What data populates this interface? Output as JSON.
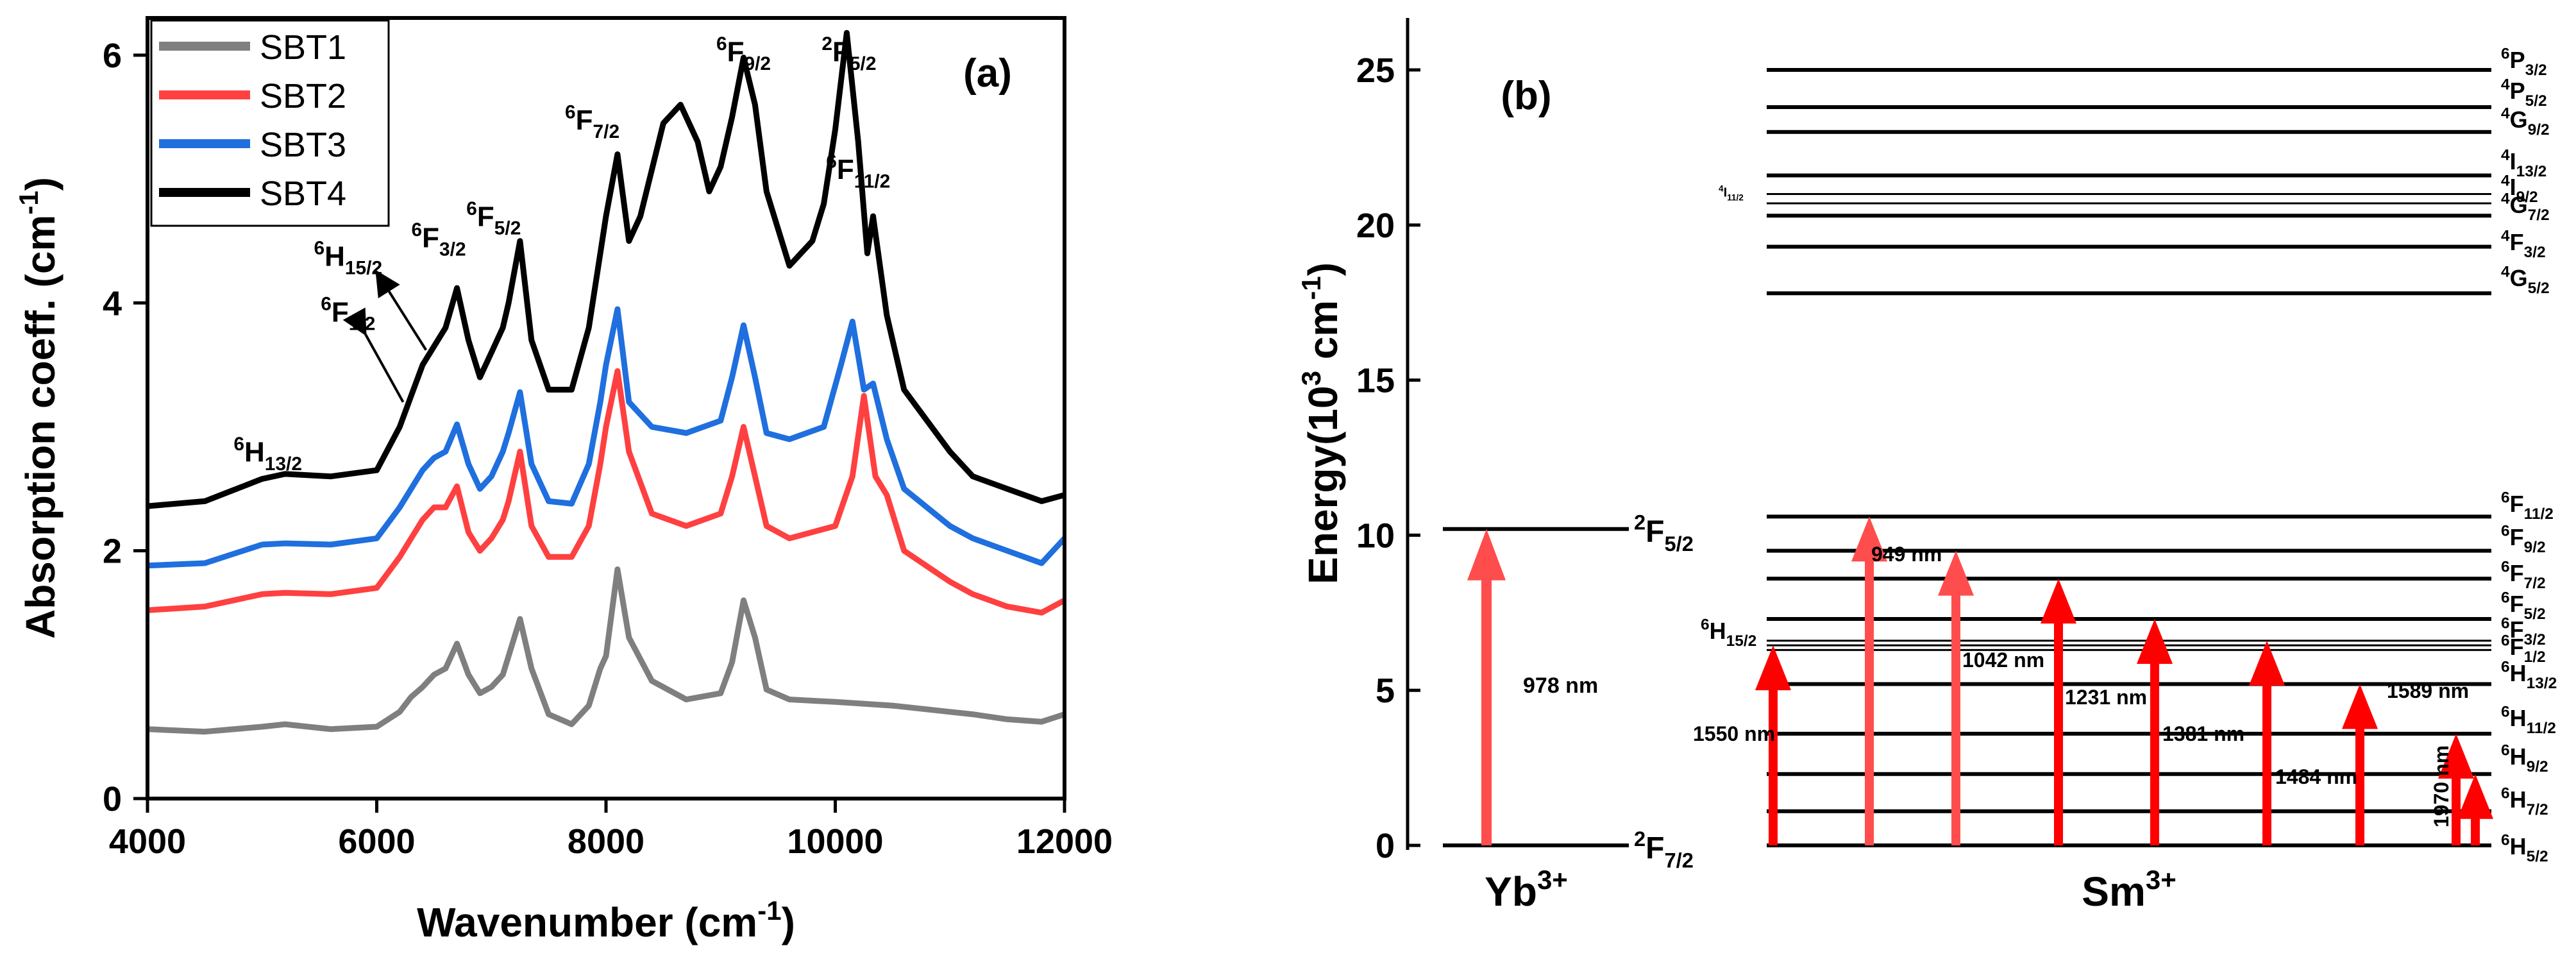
{
  "colors": {
    "SBT1": "#7f7f7f",
    "SBT2": "#ff4040",
    "SBT3": "#1f6fde",
    "SBT4": "#000000",
    "arrow_red": "#ff0000",
    "arrow_pink": "#ff4d4d"
  },
  "chart_data": [
    {
      "type": "line",
      "panel_label": "(a)",
      "xlabel": "Wavenumber (cm",
      "xlabel_sup": "-1",
      "xlabel_end": ")",
      "ylabel": "Absorption coeff. (cm",
      "ylabel_sup": "-1",
      "ylabel_end": ")",
      "xlim": [
        4000,
        12000
      ],
      "ylim": [
        0,
        6.3
      ],
      "xticks": [
        4000,
        6000,
        8000,
        10000,
        12000
      ],
      "yticks": [
        0,
        2,
        4,
        6
      ],
      "xtick_labels": [
        "4000",
        "6000",
        "8000",
        "10000",
        "12000"
      ],
      "ytick_labels": [
        "0",
        "2",
        "4",
        "6"
      ],
      "legend": [
        "SBT1",
        "SBT2",
        "SBT3",
        "SBT4"
      ],
      "series": [
        {
          "name": "SBT1",
          "points": [
            [
              4000,
              0.56
            ],
            [
              4500,
              0.54
            ],
            [
              5000,
              0.58
            ],
            [
              5200,
              0.6
            ],
            [
              5600,
              0.56
            ],
            [
              6000,
              0.58
            ],
            [
              6200,
              0.7
            ],
            [
              6300,
              0.82
            ],
            [
              6400,
              0.9
            ],
            [
              6500,
              1.0
            ],
            [
              6600,
              1.05
            ],
            [
              6700,
              1.25
            ],
            [
              6800,
              1.0
            ],
            [
              6900,
              0.85
            ],
            [
              7000,
              0.9
            ],
            [
              7100,
              1.0
            ],
            [
              7150,
              1.15
            ],
            [
              7250,
              1.45
            ],
            [
              7350,
              1.05
            ],
            [
              7500,
              0.68
            ],
            [
              7700,
              0.6
            ],
            [
              7850,
              0.75
            ],
            [
              7950,
              1.05
            ],
            [
              8000,
              1.15
            ],
            [
              8100,
              1.85
            ],
            [
              8200,
              1.3
            ],
            [
              8400,
              0.95
            ],
            [
              8700,
              0.8
            ],
            [
              9000,
              0.85
            ],
            [
              9100,
              1.1
            ],
            [
              9200,
              1.6
            ],
            [
              9300,
              1.3
            ],
            [
              9400,
              0.88
            ],
            [
              9600,
              0.8
            ],
            [
              10000,
              0.78
            ],
            [
              10500,
              0.75
            ],
            [
              11000,
              0.7
            ],
            [
              11200,
              0.68
            ],
            [
              11500,
              0.64
            ],
            [
              11800,
              0.62
            ],
            [
              12000,
              0.68
            ]
          ]
        },
        {
          "name": "SBT2",
          "points": [
            [
              4000,
              1.52
            ],
            [
              4500,
              1.55
            ],
            [
              5000,
              1.65
            ],
            [
              5200,
              1.66
            ],
            [
              5600,
              1.65
            ],
            [
              6000,
              1.7
            ],
            [
              6200,
              1.95
            ],
            [
              6300,
              2.1
            ],
            [
              6400,
              2.25
            ],
            [
              6500,
              2.35
            ],
            [
              6600,
              2.35
            ],
            [
              6700,
              2.52
            ],
            [
              6800,
              2.15
            ],
            [
              6900,
              2.0
            ],
            [
              7000,
              2.1
            ],
            [
              7100,
              2.25
            ],
            [
              7150,
              2.4
            ],
            [
              7250,
              2.8
            ],
            [
              7350,
              2.2
            ],
            [
              7500,
              1.95
            ],
            [
              7700,
              1.95
            ],
            [
              7850,
              2.2
            ],
            [
              7950,
              2.7
            ],
            [
              8000,
              3.0
            ],
            [
              8100,
              3.45
            ],
            [
              8200,
              2.8
            ],
            [
              8400,
              2.3
            ],
            [
              8700,
              2.2
            ],
            [
              9000,
              2.3
            ],
            [
              9100,
              2.6
            ],
            [
              9200,
              3.0
            ],
            [
              9300,
              2.6
            ],
            [
              9400,
              2.2
            ],
            [
              9600,
              2.1
            ],
            [
              10000,
              2.2
            ],
            [
              10150,
              2.6
            ],
            [
              10250,
              3.25
            ],
            [
              10350,
              2.6
            ],
            [
              10450,
              2.45
            ],
            [
              10600,
              2.0
            ],
            [
              11000,
              1.75
            ],
            [
              11200,
              1.65
            ],
            [
              11500,
              1.55
            ],
            [
              11800,
              1.5
            ],
            [
              12000,
              1.6
            ]
          ]
        },
        {
          "name": "SBT3",
          "points": [
            [
              4000,
              1.88
            ],
            [
              4500,
              1.9
            ],
            [
              5000,
              2.05
            ],
            [
              5200,
              2.06
            ],
            [
              5600,
              2.05
            ],
            [
              6000,
              2.1
            ],
            [
              6200,
              2.35
            ],
            [
              6300,
              2.5
            ],
            [
              6400,
              2.65
            ],
            [
              6500,
              2.75
            ],
            [
              6600,
              2.8
            ],
            [
              6700,
              3.02
            ],
            [
              6800,
              2.7
            ],
            [
              6900,
              2.5
            ],
            [
              7000,
              2.6
            ],
            [
              7100,
              2.8
            ],
            [
              7150,
              2.95
            ],
            [
              7250,
              3.28
            ],
            [
              7350,
              2.7
            ],
            [
              7500,
              2.4
            ],
            [
              7700,
              2.38
            ],
            [
              7850,
              2.7
            ],
            [
              7950,
              3.2
            ],
            [
              8000,
              3.5
            ],
            [
              8100,
              3.95
            ],
            [
              8200,
              3.2
            ],
            [
              8400,
              3.0
            ],
            [
              8700,
              2.95
            ],
            [
              9000,
              3.05
            ],
            [
              9100,
              3.4
            ],
            [
              9200,
              3.82
            ],
            [
              9300,
              3.4
            ],
            [
              9400,
              2.95
            ],
            [
              9600,
              2.9
            ],
            [
              9900,
              3.0
            ],
            [
              10050,
              3.5
            ],
            [
              10150,
              3.85
            ],
            [
              10250,
              3.3
            ],
            [
              10330,
              3.35
            ],
            [
              10450,
              2.9
            ],
            [
              10600,
              2.5
            ],
            [
              11000,
              2.2
            ],
            [
              11200,
              2.1
            ],
            [
              11500,
              2.0
            ],
            [
              11800,
              1.9
            ],
            [
              12000,
              2.1
            ]
          ]
        },
        {
          "name": "SBT4",
          "points": [
            [
              4000,
              2.36
            ],
            [
              4500,
              2.4
            ],
            [
              5000,
              2.58
            ],
            [
              5200,
              2.62
            ],
            [
              5600,
              2.6
            ],
            [
              6000,
              2.65
            ],
            [
              6200,
              3.0
            ],
            [
              6300,
              3.25
            ],
            [
              6400,
              3.5
            ],
            [
              6500,
              3.65
            ],
            [
              6600,
              3.8
            ],
            [
              6700,
              4.12
            ],
            [
              6800,
              3.7
            ],
            [
              6900,
              3.4
            ],
            [
              7000,
              3.6
            ],
            [
              7100,
              3.8
            ],
            [
              7150,
              4.0
            ],
            [
              7250,
              4.5
            ],
            [
              7350,
              3.7
            ],
            [
              7500,
              3.3
            ],
            [
              7700,
              3.3
            ],
            [
              7850,
              3.8
            ],
            [
              7950,
              4.4
            ],
            [
              8000,
              4.7
            ],
            [
              8100,
              5.2
            ],
            [
              8200,
              4.5
            ],
            [
              8300,
              4.7
            ],
            [
              8500,
              5.45
            ],
            [
              8650,
              5.6
            ],
            [
              8800,
              5.3
            ],
            [
              8900,
              4.9
            ],
            [
              9000,
              5.1
            ],
            [
              9100,
              5.5
            ],
            [
              9200,
              5.98
            ],
            [
              9300,
              5.6
            ],
            [
              9400,
              4.9
            ],
            [
              9600,
              4.3
            ],
            [
              9800,
              4.5
            ],
            [
              9900,
              4.8
            ],
            [
              10000,
              5.4
            ],
            [
              10100,
              6.18
            ],
            [
              10200,
              5.3
            ],
            [
              10280,
              4.4
            ],
            [
              10330,
              4.7
            ],
            [
              10450,
              3.9
            ],
            [
              10600,
              3.3
            ],
            [
              11000,
              2.8
            ],
            [
              11200,
              2.6
            ],
            [
              11500,
              2.5
            ],
            [
              11800,
              2.4
            ],
            [
              12000,
              2.45
            ]
          ]
        }
      ],
      "annotations": [
        {
          "term": "6H13/2",
          "sup": "6",
          "base": "H",
          "sub": "13/2",
          "x": 5050,
          "y": 2.72
        },
        {
          "term": "6F1/2",
          "sup": "6",
          "base": "F",
          "sub": "1/2",
          "x": 5750,
          "y": 3.85
        },
        {
          "term": "6H15/2",
          "sup": "6",
          "base": "H",
          "sub": "15/2",
          "x": 5750,
          "y": 4.3
        },
        {
          "term": "6F3/2",
          "sup": "6",
          "base": "F",
          "sub": "3/2",
          "x": 6540,
          "y": 4.45
        },
        {
          "term": "6F5/2",
          "sup": "6",
          "base": "F",
          "sub": "5/2",
          "x": 7020,
          "y": 4.62
        },
        {
          "term": "6F7/2",
          "sup": "6",
          "base": "F",
          "sub": "7/2",
          "x": 7880,
          "y": 5.4
        },
        {
          "term": "6F9/2",
          "sup": "6",
          "base": "F",
          "sub": "9/2",
          "x": 9200,
          "y": 5.95
        },
        {
          "term": "2F5/2",
          "sup": "2",
          "base": "F",
          "sub": "5/2",
          "x": 10120,
          "y": 5.95
        },
        {
          "term": "6F11/2",
          "sup": "6",
          "base": "F",
          "sub": "11/2",
          "x": 10200,
          "y": 5.0
        }
      ]
    },
    {
      "type": "energy-level-diagram",
      "panel_label": "(b)",
      "ylabel": "Energy(10",
      "ylabel_sup": "3",
      "ylabel_mid": " cm",
      "ylabel_sup2": "-1",
      "ylabel_end": ")",
      "ylim": [
        0,
        25.6
      ],
      "yticks": [
        0,
        5,
        10,
        15,
        20,
        25
      ],
      "ytick_labels": [
        "0",
        "5",
        "10",
        "15",
        "20",
        "25"
      ],
      "yb_label": "Yb",
      "yb_charge": "3+",
      "sm_label": "Sm",
      "sm_charge": "3+",
      "yb_levels": [
        {
          "term": "2F7/2",
          "sup": "2",
          "base": "F",
          "sub": "7/2",
          "energy": 0
        },
        {
          "term": "2F5/2",
          "sup": "2",
          "base": "F",
          "sub": "5/2",
          "energy": 10.2
        }
      ],
      "yb_transition": {
        "label": "978 nm",
        "from": 0,
        "to": 10.2
      },
      "sm_levels": [
        {
          "term": "6H5/2",
          "sup": "6",
          "base": "H",
          "sub": "5/2",
          "energy": 0
        },
        {
          "term": "6H7/2",
          "sup": "6",
          "base": "H",
          "sub": "7/2",
          "energy": 1.1
        },
        {
          "term": "6H9/2",
          "sup": "6",
          "base": "H",
          "sub": "9/2",
          "energy": 2.3
        },
        {
          "term": "6H11/2",
          "sup": "6",
          "base": "H",
          "sub": "11/2",
          "energy": 3.6
        },
        {
          "term": "6H13/2",
          "sup": "6",
          "base": "H",
          "sub": "13/2",
          "energy": 5.2
        },
        {
          "term": "6F1/2",
          "sup": "6",
          "base": "F",
          "sub": "1/2",
          "energy": 6.3
        },
        {
          "term": "6F3/2",
          "sup": "6",
          "base": "F",
          "sub": "3/2",
          "energy": 6.6
        },
        {
          "term": "6H15/2",
          "sup": "6",
          "base": "H",
          "sub": "15/2",
          "energy": 6.45
        },
        {
          "term": "6F5/2",
          "sup": "6",
          "base": "F",
          "sub": "5/2",
          "energy": 7.3
        },
        {
          "term": "6F7/2",
          "sup": "6",
          "base": "F",
          "sub": "7/2",
          "energy": 8.6
        },
        {
          "term": "6F9/2",
          "sup": "6",
          "base": "F",
          "sub": "9/2",
          "energy": 9.5
        },
        {
          "term": "6F11/2",
          "sup": "6",
          "base": "F",
          "sub": "11/2",
          "energy": 10.6
        },
        {
          "term": "4G5/2",
          "sup": "4",
          "base": "G",
          "sub": "5/2",
          "energy": 17.8
        },
        {
          "term": "4F3/2",
          "sup": "4",
          "base": "F",
          "sub": "3/2",
          "energy": 19.3
        },
        {
          "term": "4G7/2",
          "sup": "4",
          "base": "G",
          "sub": "7/2",
          "energy": 20.3
        },
        {
          "term": "4I9/2",
          "sup": "4",
          "base": "I",
          "sub": "9/2",
          "energy": 20.7
        },
        {
          "term": "4I11/2",
          "sup": "4",
          "base": "I",
          "sub": "11/2",
          "energy": 21.0
        },
        {
          "term": "4I13/2",
          "sup": "4",
          "base": "I",
          "sub": "13/2",
          "energy": 21.6
        },
        {
          "term": "4G9/2",
          "sup": "4",
          "base": "G",
          "sub": "9/2",
          "energy": 23.0
        },
        {
          "term": "4P5/2",
          "sup": "4",
          "base": "P",
          "sub": "5/2",
          "energy": 23.8
        },
        {
          "term": "6P3/2",
          "sup": "6",
          "base": "P",
          "sub": "3/2",
          "energy": 25.0
        }
      ],
      "sm_transitions": [
        {
          "label": "1550 nm",
          "to": 6.45
        },
        {
          "label": "949 nm",
          "to": 10.6
        },
        {
          "label": "",
          "to": 9.5
        },
        {
          "label": "1042 nm",
          "to": 8.6
        },
        {
          "label": "1231 nm",
          "to": 7.3
        },
        {
          "label": "1381 nm",
          "to": 6.6
        },
        {
          "label": "1484 nm",
          "to": 5.2
        },
        {
          "label": "1589 nm",
          "to": 3.6
        },
        {
          "label": "1970 nm",
          "to": 2.3
        }
      ]
    }
  ]
}
